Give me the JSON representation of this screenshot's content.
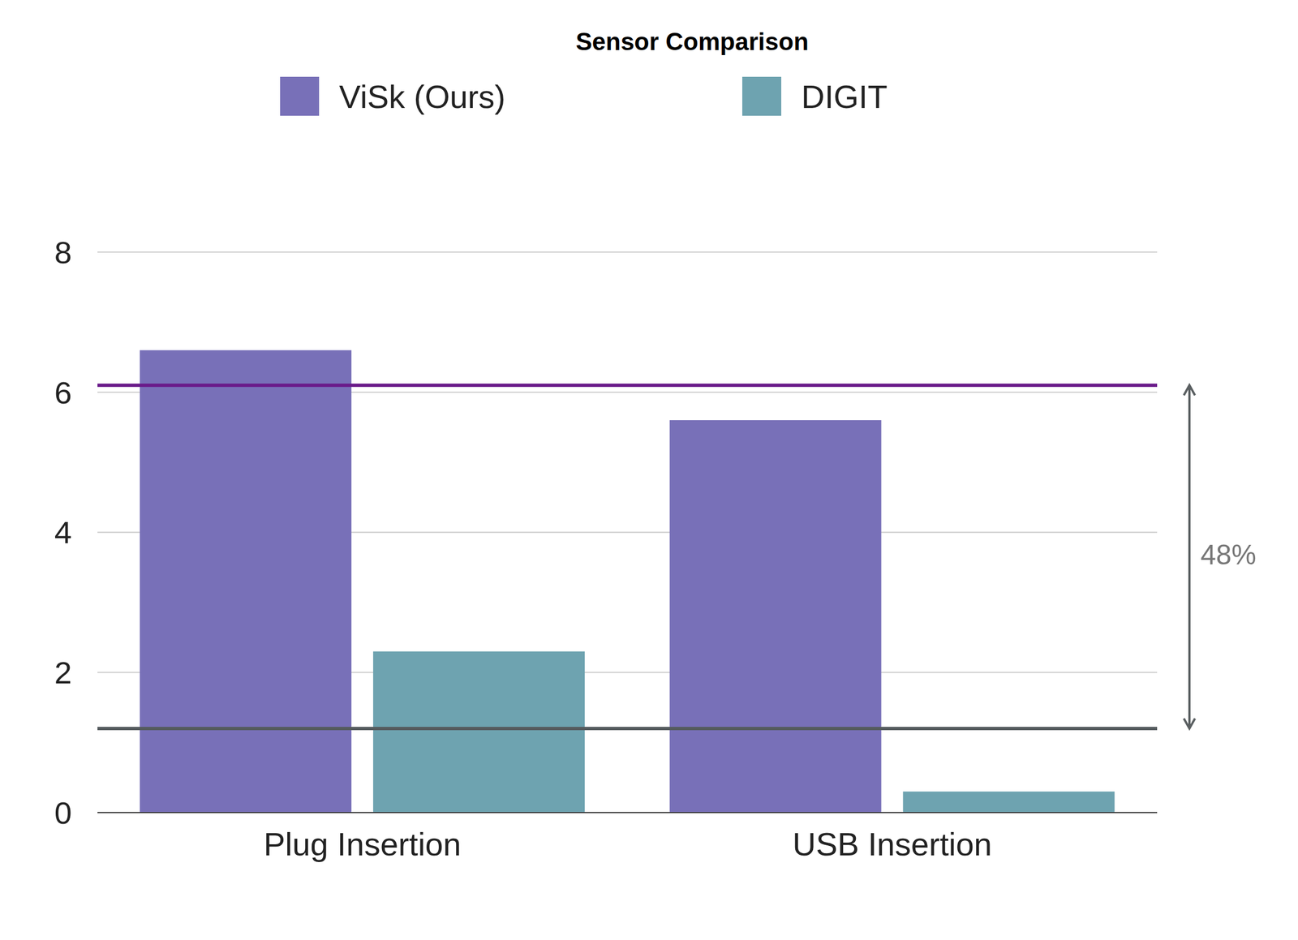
{
  "chart_data": {
    "type": "bar",
    "title": "Sensor Comparison",
    "categories": [
      "Plug Insertion",
      "USB Insertion"
    ],
    "series": [
      {
        "name": "ViSk (Ours)",
        "color": "#7870b8",
        "values": [
          6.6,
          5.6
        ]
      },
      {
        "name": "DIGIT",
        "color": "#6ea3b0",
        "values": [
          2.3,
          0.3
        ]
      }
    ],
    "ylim": [
      0,
      8
    ],
    "yticks": [
      0,
      2,
      4,
      6,
      8
    ],
    "grid": true,
    "legend": "top",
    "reference_lines": [
      {
        "y": 6.1,
        "color": "#6a1b8a"
      },
      {
        "y": 1.2,
        "color": "#555b5e"
      }
    ],
    "annotation": {
      "text": "48%",
      "from": 1.2,
      "to": 6.1
    }
  }
}
